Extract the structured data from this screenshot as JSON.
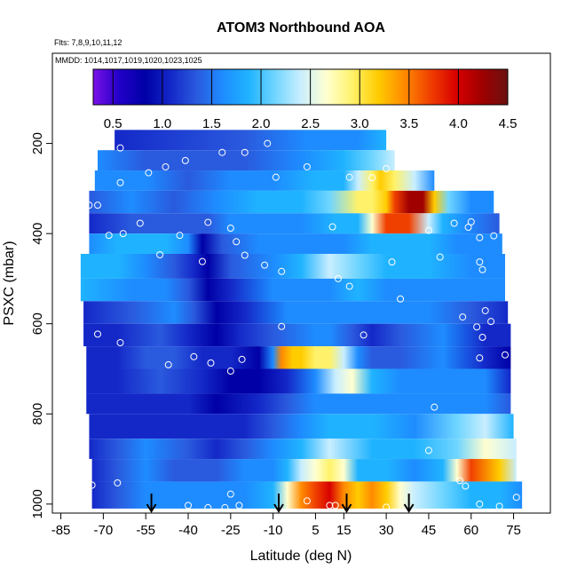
{
  "chart_data": {
    "type": "heatmap",
    "title": "ATOM3 Northbound AOA",
    "annotations": {
      "flights": "Flts: 7,8,9,10,11,12",
      "dates": "MMDD: 1014,1017,1019,1020,1023,1025"
    },
    "xlabel": "Latitude (deg N)",
    "ylabel": "PSXC (mbar)",
    "xlim": [
      -88,
      88
    ],
    "ylim": [
      1020,
      0
    ],
    "xticks": [
      -85,
      -70,
      -55,
      -40,
      -25,
      -10,
      5,
      15,
      30,
      45,
      60,
      75
    ],
    "yticks": [
      200,
      400,
      600,
      800,
      1000
    ],
    "colorbar": {
      "min": 0.3,
      "max": 4.5,
      "ticks": [
        0.5,
        1.0,
        1.5,
        2.0,
        2.5,
        3.0,
        3.5,
        4.0,
        4.5
      ],
      "tick_labels": [
        "0.5",
        "1.0",
        "1.5",
        "2.0",
        "2.5",
        "3.0",
        "3.5",
        "4.0",
        "4.5"
      ],
      "colors": [
        "#7B11E8",
        "#2200C8",
        "#0000A6",
        "#1428C8",
        "#2A5ADE",
        "#1E8CFF",
        "#1FB3FF",
        "#6FD5FF",
        "#C8EEFF",
        "#FFFFD0",
        "#FFF26A",
        "#FFCC00",
        "#FF8A00",
        "#F04000",
        "#D80000",
        "#A00000",
        "#6A1010"
      ]
    },
    "bands": [
      {
        "p0": 170,
        "p1": 215,
        "lat": [
          -66,
          -20,
          2,
          20,
          30
        ],
        "v": [
          1.2,
          1.3,
          1.5,
          1.7,
          1.75
        ]
      },
      {
        "p0": 215,
        "p1": 260,
        "lat": [
          -72,
          -55,
          -40,
          -20,
          0,
          15,
          25,
          33
        ],
        "v": [
          1.5,
          1.4,
          1.3,
          1.4,
          1.6,
          1.9,
          2.2,
          2.3
        ]
      },
      {
        "p0": 260,
        "p1": 305,
        "lat": [
          -73,
          -55,
          -40,
          -25,
          -10,
          5,
          15,
          20,
          25,
          28,
          33,
          40,
          47
        ],
        "v": [
          1.6,
          1.5,
          1.4,
          1.6,
          1.7,
          1.8,
          2.0,
          2.4,
          2.8,
          3.1,
          3.0,
          2.4,
          1.6
        ]
      },
      {
        "p0": 305,
        "p1": 355,
        "lat": [
          -75,
          -60,
          -45,
          -30,
          -15,
          0,
          10,
          20,
          25,
          30,
          33,
          38,
          43,
          47,
          52,
          60,
          68
        ],
        "v": [
          1.3,
          1.5,
          1.4,
          1.5,
          1.8,
          1.9,
          2.2,
          2.8,
          3.0,
          3.2,
          3.7,
          4.3,
          4.2,
          3.2,
          2.2,
          1.6,
          1.5
        ]
      },
      {
        "p0": 355,
        "p1": 400,
        "lat": [
          -75,
          -60,
          -45,
          -33,
          -25,
          -15,
          0,
          12,
          20,
          25,
          30,
          38,
          45,
          50,
          58,
          70
        ],
        "v": [
          1.0,
          1.3,
          1.4,
          1.3,
          1.5,
          1.7,
          1.7,
          1.8,
          2.0,
          2.6,
          3.6,
          3.6,
          2.4,
          1.9,
          1.5,
          1.3
        ]
      },
      {
        "p0": 400,
        "p1": 445,
        "lat": [
          -75,
          -65,
          -48,
          -40,
          -35,
          -28,
          -15,
          0,
          15,
          25,
          35,
          45,
          55,
          71
        ],
        "v": [
          1.5,
          1.9,
          2.0,
          1.7,
          0.9,
          1.3,
          1.5,
          1.6,
          1.6,
          1.8,
          2.0,
          1.8,
          1.5,
          1.6
        ]
      },
      {
        "p0": 445,
        "p1": 500,
        "lat": [
          -78,
          -65,
          -55,
          -45,
          -38,
          -33,
          -25,
          -10,
          0,
          10,
          20,
          30,
          45,
          60,
          72
        ],
        "v": [
          1.9,
          1.9,
          1.7,
          1.4,
          1.0,
          0.9,
          1.4,
          1.7,
          2.0,
          2.5,
          2.2,
          1.9,
          1.8,
          1.7,
          1.6
        ]
      },
      {
        "p0": 500,
        "p1": 550,
        "lat": [
          -78,
          -60,
          -48,
          -40,
          -33,
          -25,
          -10,
          0,
          10,
          20,
          30,
          45,
          60,
          72
        ],
        "v": [
          1.8,
          1.6,
          1.5,
          1.3,
          0.9,
          1.2,
          1.5,
          1.6,
          1.7,
          1.9,
          1.7,
          1.6,
          1.5,
          1.5
        ]
      },
      {
        "p0": 550,
        "p1": 600,
        "lat": [
          -77,
          -60,
          -45,
          -38,
          -30,
          -20,
          -5,
          5,
          20,
          30,
          45,
          60,
          73
        ],
        "v": [
          1.2,
          1.4,
          1.5,
          1.3,
          0.9,
          1.2,
          1.5,
          1.6,
          1.5,
          1.6,
          1.5,
          1.3,
          1.2
        ]
      },
      {
        "p0": 600,
        "p1": 650,
        "lat": [
          -77,
          -65,
          -50,
          -40,
          -30,
          -22,
          -10,
          5,
          10,
          18,
          25,
          35,
          50,
          65,
          74
        ],
        "v": [
          1.0,
          1.2,
          1.4,
          1.2,
          0.9,
          1.0,
          1.3,
          1.5,
          1.7,
          1.3,
          1.0,
          1.3,
          1.5,
          1.2,
          1.0
        ]
      },
      {
        "p0": 650,
        "p1": 700,
        "lat": [
          -76,
          -65,
          -55,
          -45,
          -35,
          -25,
          -15,
          -10,
          -7,
          -3,
          0,
          5,
          10,
          15,
          20,
          25,
          35,
          50,
          65,
          74
        ],
        "v": [
          1.1,
          1.2,
          1.3,
          1.4,
          1.2,
          1.0,
          0.9,
          1.6,
          3.5,
          3.3,
          3.2,
          3.0,
          2.8,
          2.3,
          1.7,
          1.4,
          1.3,
          1.6,
          1.2,
          0.8
        ]
      },
      {
        "p0": 700,
        "p1": 755,
        "lat": [
          -76,
          -65,
          -50,
          -35,
          -25,
          -15,
          -5,
          5,
          12,
          18,
          25,
          35,
          50,
          65,
          74
        ],
        "v": [
          1.1,
          1.2,
          1.4,
          1.1,
          0.8,
          0.9,
          1.2,
          1.6,
          2.3,
          2.7,
          2.0,
          1.7,
          1.7,
          1.6,
          1.2
        ]
      },
      {
        "p0": 755,
        "p1": 800,
        "lat": [
          -76,
          -65,
          -55,
          -40,
          -30,
          -15,
          -5,
          5,
          15,
          25,
          40,
          55,
          65,
          74
        ],
        "v": [
          1.0,
          1.1,
          1.2,
          1.0,
          0.9,
          1.1,
          1.3,
          1.5,
          1.6,
          1.7,
          1.6,
          1.7,
          1.5,
          1.3
        ]
      },
      {
        "p0": 800,
        "p1": 855,
        "lat": [
          -75,
          -65,
          -55,
          -40,
          -30,
          -20,
          -10,
          0,
          10,
          25,
          40,
          55,
          65,
          75
        ],
        "v": [
          1.0,
          1.1,
          1.2,
          1.1,
          1.0,
          1.1,
          1.4,
          1.7,
          1.9,
          1.8,
          1.7,
          2.2,
          2.4,
          2.0
        ]
      },
      {
        "p0": 855,
        "p1": 900,
        "lat": [
          -75,
          -65,
          -55,
          -40,
          -30,
          -20,
          -10,
          0,
          10,
          25,
          40,
          55,
          65,
          76
        ],
        "v": [
          1.1,
          1.3,
          1.5,
          1.3,
          1.2,
          1.4,
          1.6,
          1.9,
          2.3,
          2.0,
          1.8,
          2.2,
          2.6,
          2.3
        ]
      },
      {
        "p0": 900,
        "p1": 950,
        "lat": [
          -74,
          -65,
          -55,
          -45,
          -30,
          -20,
          -10,
          -5,
          0,
          5,
          10,
          15,
          20,
          30,
          40,
          50,
          55,
          60,
          70,
          76
        ],
        "v": [
          1.1,
          1.3,
          1.6,
          1.4,
          1.3,
          1.5,
          1.7,
          2.0,
          2.3,
          2.6,
          2.9,
          2.6,
          2.0,
          1.8,
          1.7,
          1.9,
          2.7,
          3.6,
          3.3,
          2.5
        ]
      },
      {
        "p0": 950,
        "p1": 1010,
        "lat": [
          -74,
          -65,
          -55,
          -45,
          -30,
          -20,
          -10,
          -5,
          0,
          5,
          10,
          15,
          20,
          25,
          30,
          35,
          40,
          50,
          60,
          70,
          78
        ],
        "v": [
          1.2,
          1.4,
          1.6,
          1.6,
          1.5,
          1.7,
          1.9,
          2.6,
          3.4,
          3.6,
          3.9,
          3.5,
          3.3,
          3.4,
          3.1,
          2.6,
          2.5,
          2.2,
          2.0,
          1.8,
          1.6
        ]
      }
    ],
    "points": [
      [
        -64,
        210
      ],
      [
        -28,
        220
      ],
      [
        -20,
        220
      ],
      [
        -12,
        200
      ],
      [
        -41,
        238
      ],
      [
        -48,
        252
      ],
      [
        -54,
        265
      ],
      [
        -64,
        287
      ],
      [
        -9,
        275
      ],
      [
        2,
        252
      ],
      [
        17,
        275
      ],
      [
        25,
        276
      ],
      [
        30,
        256
      ],
      [
        -72,
        337
      ],
      [
        -75,
        337
      ],
      [
        -68,
        404
      ],
      [
        -63,
        400
      ],
      [
        -57,
        377
      ],
      [
        -33,
        375
      ],
      [
        -43,
        404
      ],
      [
        -25,
        388
      ],
      [
        11,
        385
      ],
      [
        45,
        393
      ],
      [
        54,
        377
      ],
      [
        59,
        386
      ],
      [
        60,
        374
      ],
      [
        63,
        409
      ],
      [
        68,
        405
      ],
      [
        72,
        390
      ],
      [
        -50,
        447
      ],
      [
        -35,
        462
      ],
      [
        -20,
        448
      ],
      [
        -7,
        484
      ],
      [
        -13,
        470
      ],
      [
        13,
        500
      ],
      [
        17,
        517
      ],
      [
        32,
        463
      ],
      [
        35,
        545
      ],
      [
        49,
        452
      ],
      [
        63,
        463
      ],
      [
        64,
        480
      ],
      [
        -23,
        418
      ],
      [
        -72,
        623
      ],
      [
        -64,
        642
      ],
      [
        -47,
        691
      ],
      [
        -38,
        673
      ],
      [
        -32,
        687
      ],
      [
        -25,
        705
      ],
      [
        -21,
        679
      ],
      [
        -7,
        606
      ],
      [
        22,
        625
      ],
      [
        57,
        585
      ],
      [
        64,
        630
      ],
      [
        65,
        571
      ],
      [
        67,
        595
      ],
      [
        62,
        607
      ],
      [
        63,
        676
      ],
      [
        72,
        669
      ],
      [
        47,
        785
      ],
      [
        45,
        881
      ],
      [
        -78,
        966
      ],
      [
        -74,
        958
      ],
      [
        -65,
        953
      ],
      [
        -40,
        1003
      ],
      [
        -33,
        1008
      ],
      [
        -27,
        1008
      ],
      [
        -22,
        1003
      ],
      [
        -25,
        978
      ],
      [
        2,
        993
      ],
      [
        10,
        1003
      ],
      [
        12,
        1003
      ],
      [
        30,
        1007
      ],
      [
        56,
        948
      ],
      [
        58,
        960
      ],
      [
        63,
        1000
      ],
      [
        70,
        1005
      ],
      [
        76,
        985
      ]
    ],
    "arrows": [
      -53,
      -8,
      16,
      38
    ]
  }
}
